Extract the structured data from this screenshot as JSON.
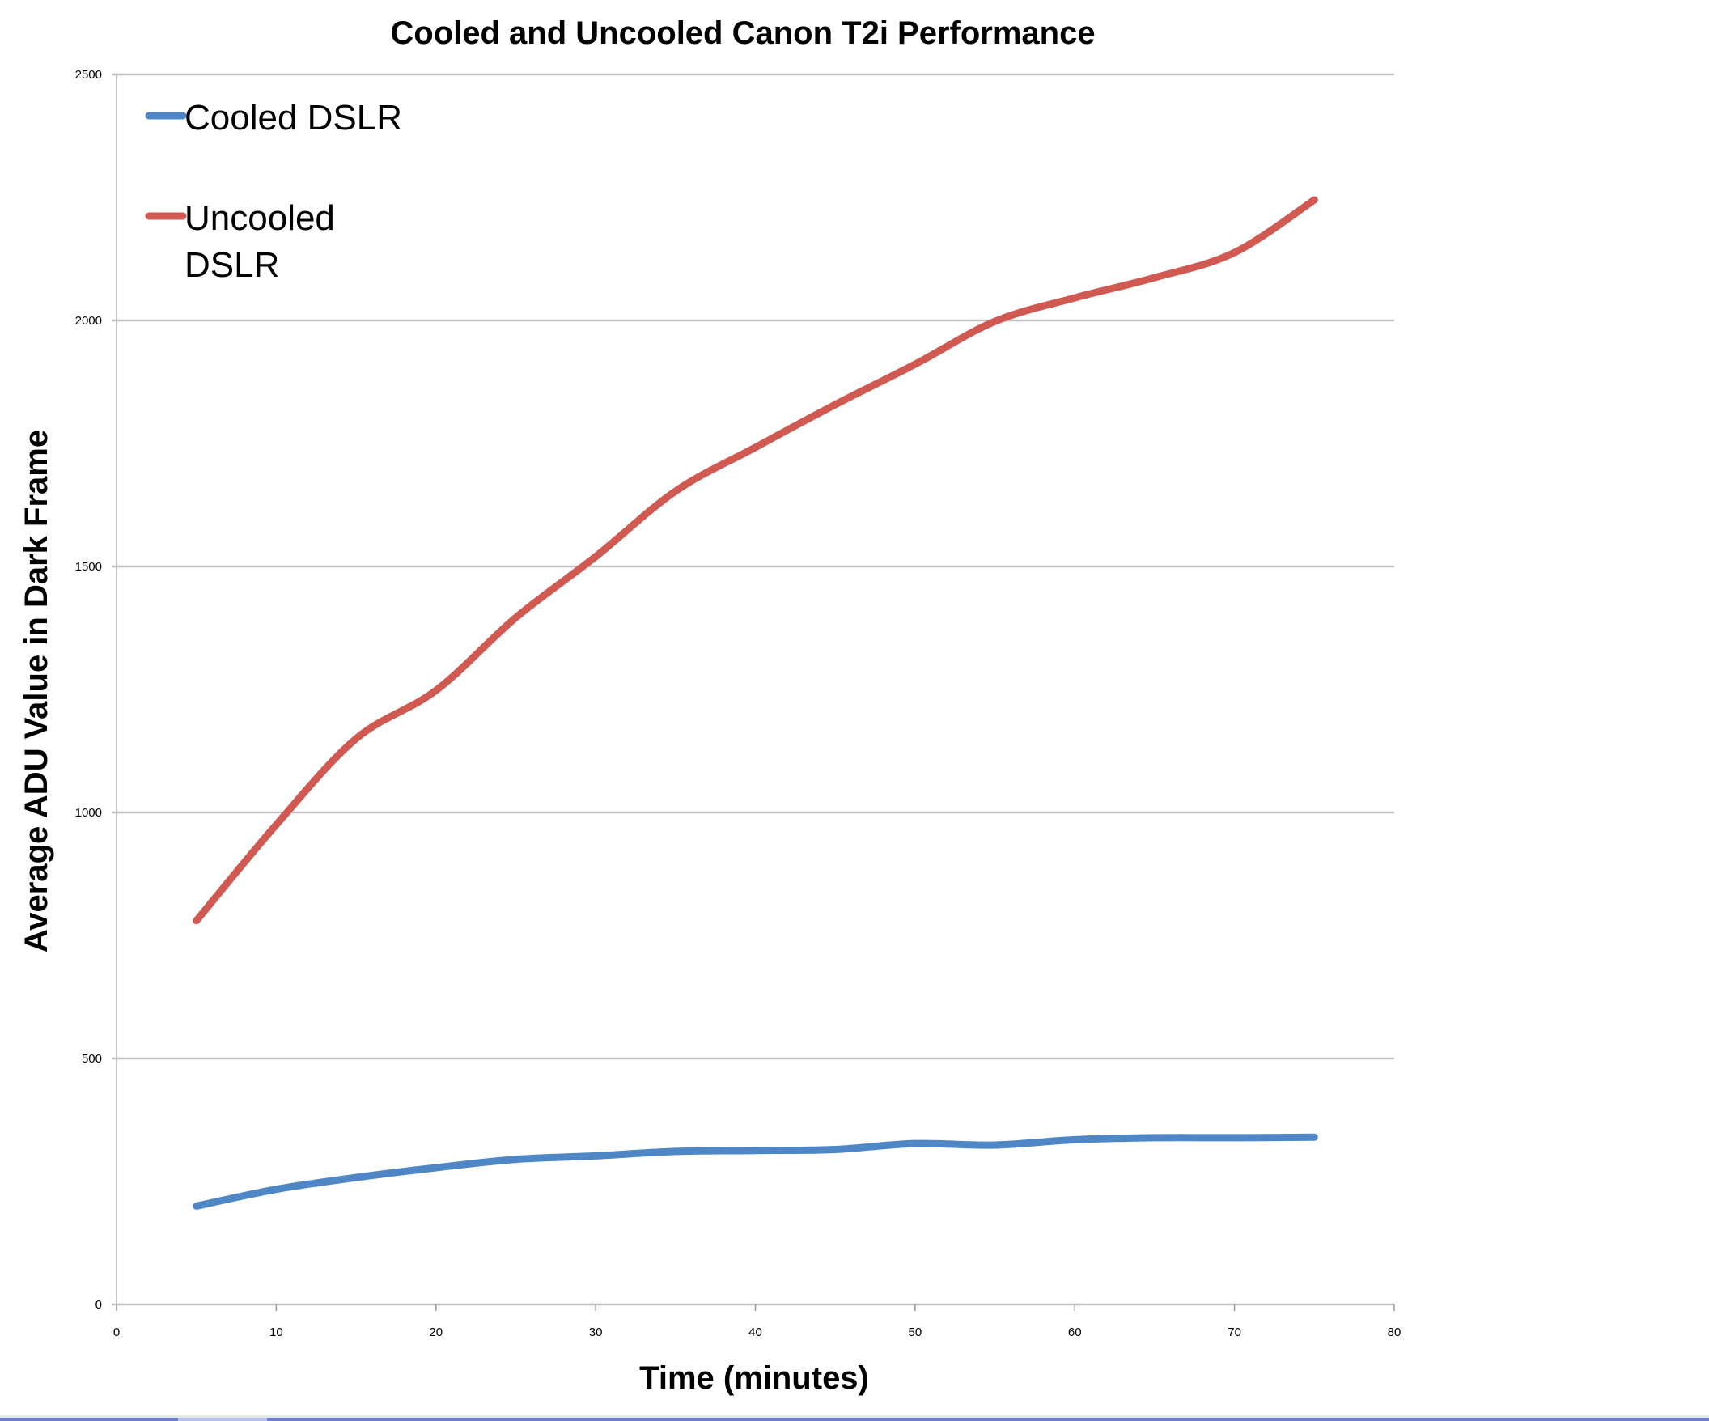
{
  "chart_data": {
    "type": "line",
    "title": "Cooled and Uncooled Canon T2i Performance",
    "xlabel": "Time (minutes)",
    "ylabel": "Average ADU Value in Dark Frame",
    "xlim": [
      0,
      80
    ],
    "ylim": [
      0,
      2500
    ],
    "xticks": [
      0,
      10,
      20,
      30,
      40,
      50,
      60,
      70,
      80
    ],
    "yticks": [
      0,
      500,
      1000,
      1500,
      2000,
      2500
    ],
    "grid": {
      "horizontal": true,
      "vertical": false
    },
    "legend_position": "upper-left-inside",
    "x": [
      5,
      10,
      15,
      20,
      25,
      30,
      35,
      40,
      45,
      50,
      55,
      60,
      65,
      70,
      75
    ],
    "series": [
      {
        "name": "Cooled DSLR",
        "color": "#4f86c6",
        "values": [
          200,
          234,
          258,
          278,
          295,
          302,
          311,
          313,
          315,
          327,
          324,
          335,
          339,
          339,
          340
        ]
      },
      {
        "name": "Uncooled DSLR",
        "legend_lines": [
          "Uncooled",
          "DSLR"
        ],
        "color": "#d05a52",
        "values": [
          780,
          975,
          1150,
          1248,
          1396,
          1520,
          1653,
          1742,
          1829,
          1911,
          1998,
          2046,
          2087,
          2138,
          2245
        ]
      }
    ]
  },
  "legend": {
    "items": [
      {
        "lines": [
          "Cooled DSLR"
        ],
        "color": "#4f86c6"
      },
      {
        "lines": [
          "Uncooled",
          "DSLR"
        ],
        "color": "#d05a52"
      }
    ]
  }
}
